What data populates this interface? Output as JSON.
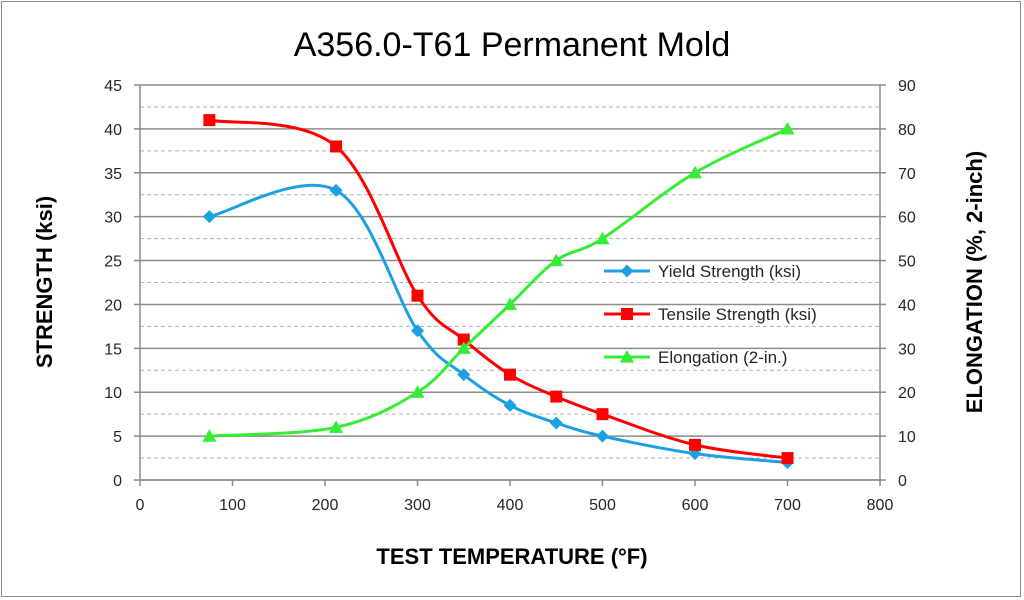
{
  "chart_data": {
    "type": "line",
    "title": "A356.0-T61 Permanent Mold",
    "xlabel": "TEST TEMPERATURE (°F)",
    "ylabel": "STRENGTH (ksi)",
    "y2label": "ELONGATION (%, 2-inch)",
    "xlim": [
      0,
      800
    ],
    "ylim": [
      0,
      45
    ],
    "y2lim": [
      0,
      90
    ],
    "x_ticks": [
      "0",
      "100",
      "200",
      "300",
      "400",
      "500",
      "600",
      "700",
      "800"
    ],
    "y_ticks": [
      "0",
      "5",
      "10",
      "15",
      "20",
      "25",
      "30",
      "35",
      "40",
      "45"
    ],
    "y2_ticks": [
      "0",
      "10",
      "20",
      "30",
      "40",
      "50",
      "60",
      "70",
      "80",
      "90"
    ],
    "grid": true,
    "legend_position": "right-center",
    "series": [
      {
        "name": "Yield Strength (ksi)",
        "axis": "left",
        "color": "#1ba1e2",
        "marker": "diamond",
        "x": [
          75,
          212,
          300,
          350,
          400,
          450,
          500,
          600,
          700
        ],
        "y": [
          30,
          33,
          17,
          12,
          8.5,
          6.5,
          5,
          3,
          2
        ]
      },
      {
        "name": "Tensile Strength (ksi)",
        "axis": "left",
        "color": "#ff0000",
        "marker": "square",
        "x": [
          75,
          212,
          300,
          350,
          400,
          450,
          500,
          600,
          700
        ],
        "y": [
          41,
          38,
          21,
          16,
          12,
          9.5,
          7.5,
          4,
          2.5
        ]
      },
      {
        "name": "Elongation (2-in.)",
        "axis": "right",
        "color": "#33ee33",
        "marker": "triangle",
        "x": [
          75,
          212,
          300,
          350,
          400,
          450,
          500,
          600,
          700
        ],
        "y": [
          10,
          12,
          20,
          30,
          40,
          50,
          55,
          70,
          80
        ]
      }
    ]
  }
}
